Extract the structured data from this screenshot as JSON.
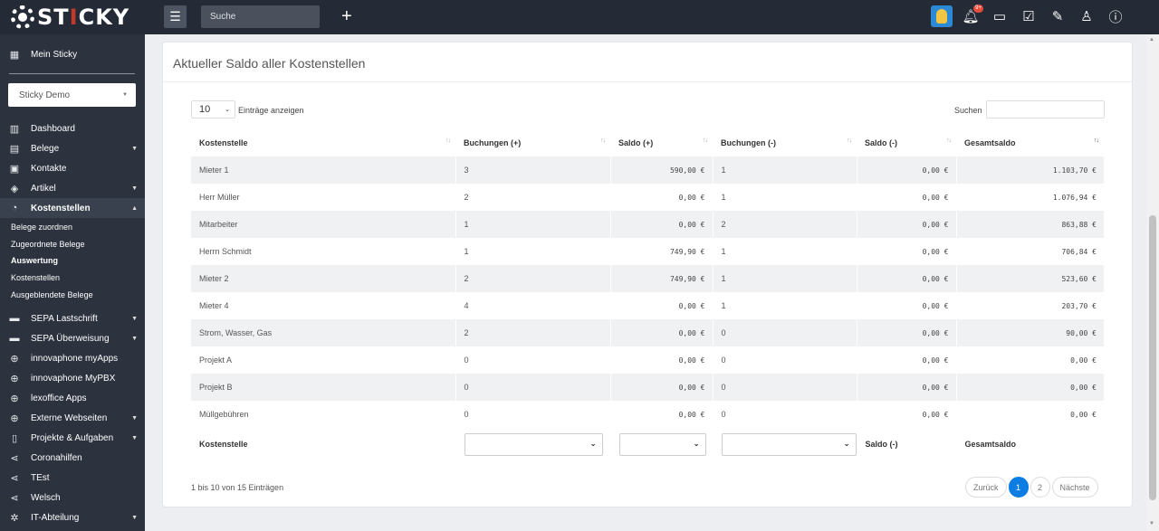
{
  "topbar": {
    "logo_text_a": "ST",
    "logo_text_i": "I",
    "logo_text_b": "CKY",
    "search_placeholder": "Suche",
    "notification_badge": "9+",
    "icons": [
      "avatar-icon",
      "bell-icon",
      "chat-icon",
      "checkbox-icon",
      "pencil-icon",
      "user-icon",
      "help-icon"
    ]
  },
  "sidebar": {
    "mein_sticky": "Mein Sticky",
    "company_select": "Sticky Demo",
    "items": [
      {
        "label": "Dashboard",
        "icon": "dashboard-icon",
        "caret": false
      },
      {
        "label": "Belege",
        "icon": "document-icon",
        "caret": true
      },
      {
        "label": "Kontakte",
        "icon": "contacts-icon",
        "caret": false
      },
      {
        "label": "Artikel",
        "icon": "box-icon",
        "caret": true
      },
      {
        "label": "Kostenstellen",
        "icon": "pie-chart-icon",
        "caret": true
      }
    ],
    "sub_items": [
      "Belege zuordnen",
      "Zugeordnete Belege",
      "Auswertung",
      "Kostenstellen",
      "Ausgeblendete Belege"
    ],
    "items2": [
      {
        "label": "SEPA Lastschrift",
        "icon": "bank-icon",
        "caret": true
      },
      {
        "label": "SEPA Überweisung",
        "icon": "bank-icon",
        "caret": true
      },
      {
        "label": "innovaphone myApps",
        "icon": "globe-icon",
        "caret": false
      },
      {
        "label": "innovaphone MyPBX",
        "icon": "globe-icon",
        "caret": false
      },
      {
        "label": "lexoffice Apps",
        "icon": "globe-icon",
        "caret": false
      },
      {
        "label": "Externe Webseiten",
        "icon": "globe-icon",
        "caret": true
      },
      {
        "label": "Projekte & Aufgaben",
        "icon": "clipboard-icon",
        "caret": true
      },
      {
        "label": "Coronahilfen",
        "icon": "share-icon",
        "caret": false
      },
      {
        "label": "TEst",
        "icon": "share-icon",
        "caret": false
      },
      {
        "label": "Welsch",
        "icon": "share-icon",
        "caret": false
      },
      {
        "label": "IT-Abteilung",
        "icon": "network-icon",
        "caret": true
      }
    ]
  },
  "card": {
    "title": "Aktueller Saldo aller Kostenstellen",
    "page_length": "10",
    "page_length_label": "Einträge anzeigen",
    "search_label": "Suchen",
    "columns": [
      "Kostenstelle",
      "Buchungen (+)",
      "Saldo (+)",
      "Buchungen (-)",
      "Saldo (-)",
      "Gesamtsaldo"
    ],
    "rows": [
      [
        "Mieter 1",
        "3",
        "590,00 €",
        "1",
        "0,00 €",
        "1.103,70 €"
      ],
      [
        "Herr Müller",
        "2",
        "0,00 €",
        "1",
        "0,00 €",
        "1.076,94 €"
      ],
      [
        "Mitarbeiter",
        "1",
        "0,00 €",
        "2",
        "0,00 €",
        "863,88 €"
      ],
      [
        "Herrn Schmidt",
        "1",
        "749,90 €",
        "1",
        "0,00 €",
        "706,84 €"
      ],
      [
        "Mieter 2",
        "2",
        "749,90 €",
        "1",
        "0,00 €",
        "523,60 €"
      ],
      [
        "Mieter 4",
        "4",
        "0,00 €",
        "1",
        "0,00 €",
        "203,70 €"
      ],
      [
        "Strom, Wasser, Gas",
        "2",
        "0,00 €",
        "0",
        "0,00 €",
        "90,00 €"
      ],
      [
        "Projekt A",
        "0",
        "0,00 €",
        "0",
        "0,00 €",
        "0,00 €"
      ],
      [
        "Projekt B",
        "0",
        "0,00 €",
        "0",
        "0,00 €",
        "0,00 €"
      ],
      [
        "Müllgebühren",
        "0",
        "0,00 €",
        "0",
        "0,00 €",
        "0,00 €"
      ]
    ],
    "footer": {
      "kostenstelle": "Kostenstelle",
      "saldo_minus": "Saldo (-)",
      "gesamtsaldo": "Gesamtsaldo"
    },
    "info": "1 bis 10 von 15 Einträgen",
    "pager": {
      "prev": "Zurück",
      "pages": [
        "1",
        "2"
      ],
      "current": "1",
      "next": "Nächste"
    }
  },
  "colors": {
    "topbar": "#252b36",
    "sidebar": "#2c323e",
    "accent": "#0d7de3"
  }
}
